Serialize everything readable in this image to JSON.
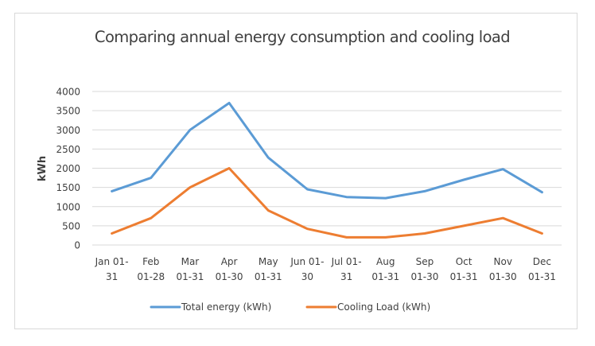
{
  "chart_data": {
    "type": "line",
    "title": "Comparing annual energy consumption and cooling load",
    "xlabel": "",
    "ylabel": "kWh",
    "ylim": [
      0,
      4000
    ],
    "yticks": [
      0,
      500,
      1000,
      1500,
      2000,
      2500,
      3000,
      3500,
      4000
    ],
    "grid": true,
    "legend_position": "bottom",
    "categories": [
      [
        "Jan 01-",
        "31"
      ],
      [
        "Feb",
        "01-28"
      ],
      [
        "Mar",
        "01-31"
      ],
      [
        "Apr",
        "01-30"
      ],
      [
        "May",
        "01-31"
      ],
      [
        "Jun 01-",
        "30"
      ],
      [
        "Jul 01-",
        "31"
      ],
      [
        "Aug",
        "01-31"
      ],
      [
        "Sep",
        "01-30"
      ],
      [
        "Oct",
        "01-31"
      ],
      [
        "Nov",
        "01-30"
      ],
      [
        "Dec",
        "01-31"
      ]
    ],
    "series": [
      {
        "name": "Total energy (kWh)",
        "color": "#5b9bd5",
        "values": [
          1400,
          1750,
          3000,
          3700,
          2275,
          1450,
          1250,
          1220,
          1400,
          1700,
          1975,
          1375
        ]
      },
      {
        "name": "Cooling Load (kWh)",
        "color": "#ed7d31",
        "values": [
          300,
          700,
          1500,
          2000,
          900,
          420,
          200,
          200,
          300,
          500,
          700,
          300
        ]
      }
    ]
  }
}
